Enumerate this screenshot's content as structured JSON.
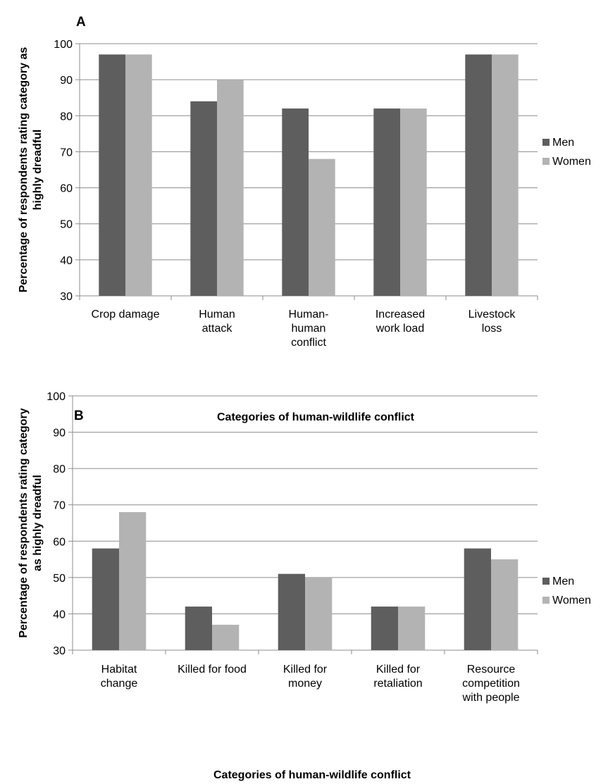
{
  "chart_data": [
    {
      "type": "bar",
      "panel": "A",
      "categories": [
        [
          "Crop damage"
        ],
        [
          "Human",
          "attack"
        ],
        [
          "Human-",
          "human",
          "conflict"
        ],
        [
          "Increased",
          "work load"
        ],
        [
          "Livestock",
          "loss"
        ]
      ],
      "series": [
        {
          "name": "Men",
          "values": [
            97,
            84,
            82,
            82,
            97
          ],
          "color": "#5e5e5e"
        },
        {
          "name": "Women",
          "values": [
            97,
            90,
            68,
            82,
            97
          ],
          "color": "#b3b3b3"
        }
      ],
      "ylabel": [
        "Percentage of respondents rating category as",
        "highly dreadful"
      ],
      "xlabel": "Categories of human-wildlife conflict",
      "ylim": [
        30,
        100
      ],
      "yticks": [
        30,
        40,
        50,
        60,
        70,
        80,
        90,
        100
      ],
      "grid": true,
      "legend": "right"
    },
    {
      "type": "bar",
      "panel": "B",
      "categories": [
        [
          "Habitat",
          "change"
        ],
        [
          "Killed for food"
        ],
        [
          "Killed for",
          "money"
        ],
        [
          "Killed for",
          "retaliation"
        ],
        [
          "Resource",
          "competition",
          "with people"
        ]
      ],
      "series": [
        {
          "name": "Men",
          "values": [
            58,
            42,
            51,
            42,
            58
          ],
          "color": "#5e5e5e"
        },
        {
          "name": "Women",
          "values": [
            68,
            37,
            50,
            42,
            55
          ],
          "color": "#b3b3b3"
        }
      ],
      "ylabel": [
        "Percentage of respondents rating category",
        "as highly dreadful"
      ],
      "xlabel": "Categories of human-wildlife conflict",
      "ylim": [
        30,
        100
      ],
      "yticks": [
        30,
        40,
        50,
        60,
        70,
        80,
        90,
        100
      ],
      "grid": true,
      "legend": "right"
    }
  ]
}
